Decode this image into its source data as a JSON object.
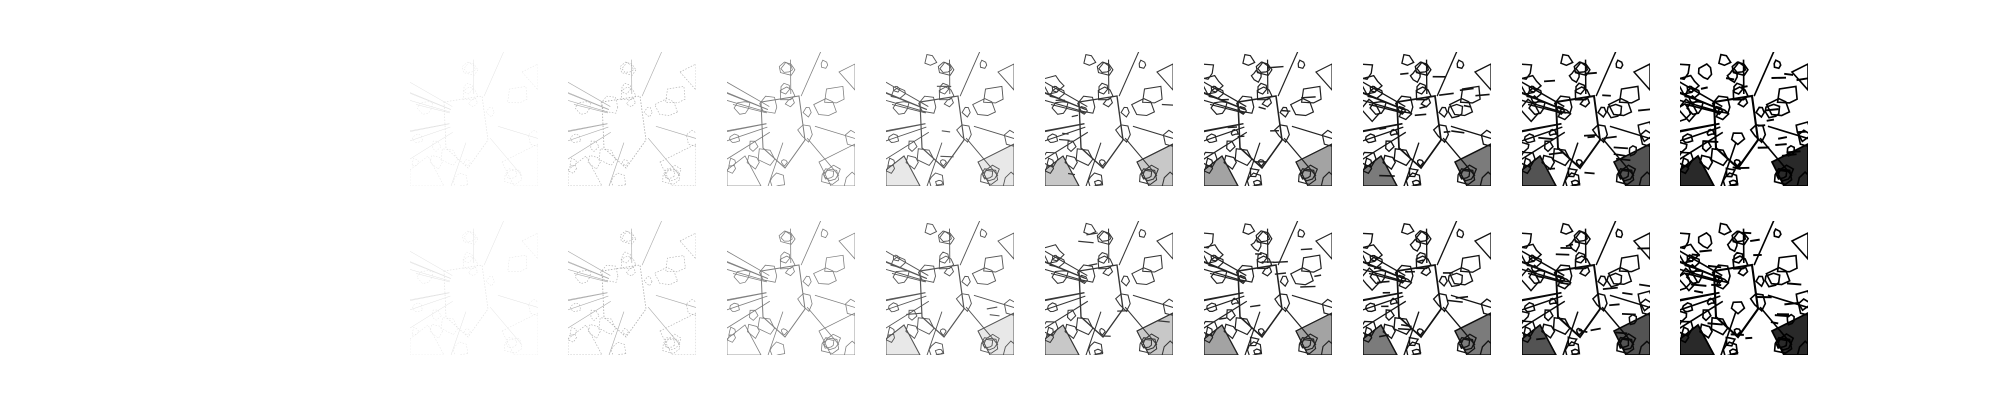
{
  "figure": {
    "rows": 2,
    "columns": 9,
    "background_color": "#ffffff",
    "ink_color": "#000000",
    "panel_opacity_levels": [
      0.12,
      0.32,
      0.5,
      0.66,
      0.78,
      0.86,
      0.92,
      0.96,
      1.0
    ],
    "row_labels": [
      "",
      ""
    ],
    "column_labels": [
      "",
      "",
      "",
      "",
      "",
      "",
      "",
      "",
      ""
    ]
  }
}
